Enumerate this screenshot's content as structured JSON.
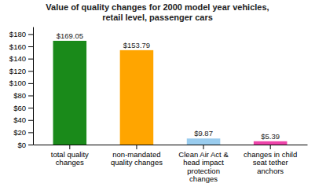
{
  "chart_data": {
    "type": "bar",
    "title": "Value of quality changes for 2000 model year vehicles,\nretail level, passenger cars",
    "categories": [
      "total quality\nchanges",
      "non-mandated\nquality changes",
      "Clean Air Act &\nhead impact\nprotection\nchanges",
      "changes in child\nseat tether\nanchors"
    ],
    "values": [
      169.05,
      153.79,
      9.87,
      5.39
    ],
    "value_labels": [
      "$169.05",
      "$153.79",
      "$9.87",
      "$5.39"
    ],
    "data_labels": true,
    "colors": [
      "#1a8a1a",
      "#FFA500",
      "#99ccee",
      "#ee44aa"
    ],
    "ylim": [
      0,
      192
    ],
    "yticks": [
      {
        "value": 0,
        "label": "$0"
      },
      {
        "value": 20,
        "label": "$20"
      },
      {
        "value": 40,
        "label": "$40"
      },
      {
        "value": 60,
        "label": "$60"
      },
      {
        "value": 80,
        "label": "$80"
      },
      {
        "value": 100,
        "label": "$100"
      },
      {
        "value": 120,
        "label": "$120"
      },
      {
        "value": 140,
        "label": "$140"
      },
      {
        "value": 160,
        "label": "$160"
      },
      {
        "value": 180,
        "label": "$180"
      }
    ],
    "grid": false
  }
}
